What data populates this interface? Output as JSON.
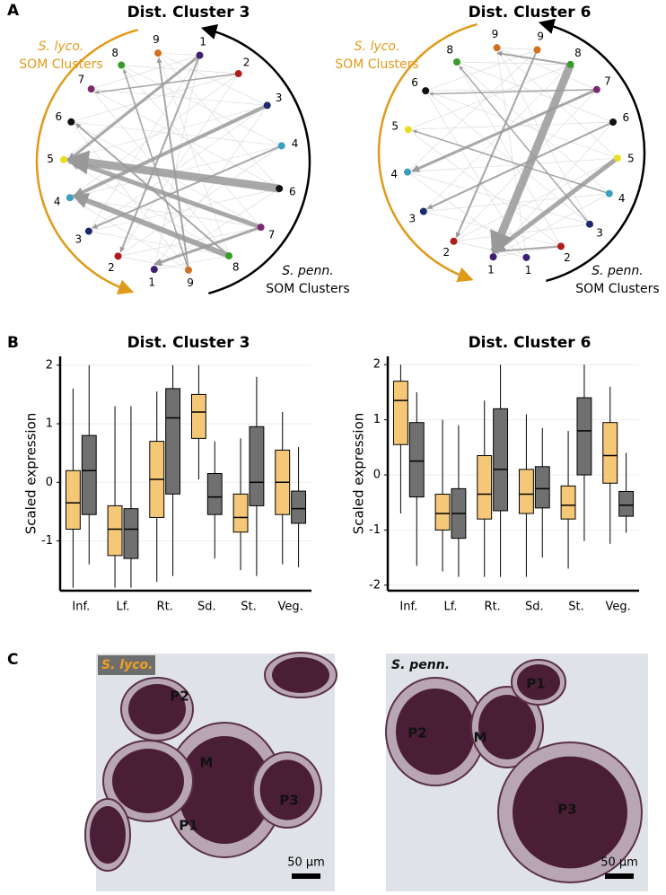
{
  "panel_labels": {
    "a": "A",
    "b": "B",
    "c": "C"
  },
  "networks": [
    {
      "title": "Dist. Cluster 3",
      "source_label": [
        "S. lyco.",
        "SOM Clusters"
      ],
      "target_label": [
        "S. penn.",
        "SOM Clusters"
      ],
      "source_nodes": [
        "9",
        "8",
        "7",
        "6",
        "5",
        "4",
        "3",
        "2",
        "1"
      ],
      "target_nodes": [
        "1",
        "2",
        "3",
        "4",
        "6",
        "7",
        "8",
        "9"
      ]
    },
    {
      "title": "Dist. Cluster 6",
      "source_label": [
        "S. lyco.",
        "SOM Clusters"
      ],
      "target_label": [
        "S. penn.",
        "SOM Clusters"
      ],
      "source_nodes": [
        "9",
        "8",
        "6",
        "5",
        "4",
        "3",
        "2",
        "1"
      ],
      "target_nodes": [
        "9",
        "8",
        "7",
        "6",
        "5",
        "4",
        "3",
        "2",
        "1"
      ]
    }
  ],
  "node_colors": {
    "1": "#3d1f73",
    "2": "#b01c1c",
    "3": "#1c2a6e",
    "4": "#3aa0c0",
    "5": "#e6e020",
    "6": "#111111",
    "7": "#7a2a6e",
    "8": "#3a9a2a",
    "9": "#d07020"
  },
  "source_color": "#e09a1a",
  "target_color": "#000000",
  "chart_data": [
    {
      "type": "box",
      "title": "Dist. Cluster 3",
      "y_label": "Scaled expression",
      "categories": [
        "Inf.",
        "Lf.",
        "Rt.",
        "Sd.",
        "St.",
        "Veg."
      ],
      "series": [
        {
          "color": "#f5c878",
          "values": [
            [
              -1.8,
              -0.8,
              -0.35,
              0.2,
              1.6
            ],
            [
              -1.8,
              -1.25,
              -0.8,
              -0.4,
              1.3
            ],
            [
              -1.7,
              -0.6,
              0.05,
              0.7,
              1.55
            ],
            [
              0.05,
              0.75,
              1.2,
              1.5,
              2.0
            ],
            [
              -1.5,
              -0.85,
              -0.6,
              -0.2,
              0.75
            ],
            [
              -1.4,
              -0.55,
              0.0,
              0.55,
              1.2
            ]
          ]
        },
        {
          "color": "#707070",
          "values": [
            [
              -1.4,
              -0.55,
              0.2,
              0.8,
              2.0
            ],
            [
              -1.8,
              -1.3,
              -0.8,
              -0.45,
              1.3
            ],
            [
              -1.6,
              -0.2,
              1.1,
              1.6,
              2.0
            ],
            [
              -1.3,
              -0.55,
              -0.25,
              0.15,
              0.7
            ],
            [
              -1.6,
              -0.4,
              0.0,
              0.95,
              1.8
            ],
            [
              -1.45,
              -0.7,
              -0.45,
              -0.15,
              0.6
            ]
          ]
        }
      ],
      "ylim": [
        -1.85,
        2.15
      ],
      "yticks": [
        -1,
        0,
        1,
        2
      ],
      "grid": true
    },
    {
      "type": "box",
      "title": "Dist. Cluster 6",
      "y_label": "Scaled expression",
      "categories": [
        "Inf.",
        "Lf.",
        "Rt.",
        "Sd.",
        "St.",
        "Veg."
      ],
      "series": [
        {
          "color": "#f5c878",
          "values": [
            [
              -0.7,
              0.55,
              1.35,
              1.7,
              2.0
            ],
            [
              -1.75,
              -1.0,
              -0.7,
              -0.35,
              1.0
            ],
            [
              -1.85,
              -0.8,
              -0.35,
              0.35,
              1.35
            ],
            [
              -1.85,
              -0.7,
              -0.35,
              0.1,
              1.1
            ],
            [
              -1.7,
              -0.8,
              -0.55,
              -0.2,
              0.8
            ],
            [
              -1.25,
              -0.15,
              0.35,
              0.95,
              1.6
            ]
          ]
        },
        {
          "color": "#707070",
          "values": [
            [
              -1.65,
              -0.4,
              0.25,
              0.95,
              1.5
            ],
            [
              -1.85,
              -1.15,
              -0.7,
              -0.25,
              0.9
            ],
            [
              -1.85,
              -0.65,
              0.1,
              1.2,
              2.0
            ],
            [
              -1.5,
              -0.6,
              -0.25,
              0.15,
              0.85
            ],
            [
              -1.2,
              0.0,
              0.8,
              1.4,
              2.0
            ],
            [
              -1.05,
              -0.75,
              -0.55,
              -0.3,
              0.4
            ]
          ]
        }
      ],
      "ylim": [
        -2.1,
        2.15
      ],
      "yticks": [
        -2,
        -1,
        0,
        1,
        2
      ],
      "grid": true
    }
  ],
  "micrographs": [
    {
      "label": "S. lyco.",
      "regions": [
        "P2",
        "M",
        "P1",
        "P3"
      ],
      "scale_bar": "50 µm"
    },
    {
      "label": "S. penn.",
      "regions": [
        "P1",
        "P2",
        "M",
        "P3"
      ],
      "scale_bar": "50 µm"
    }
  ]
}
